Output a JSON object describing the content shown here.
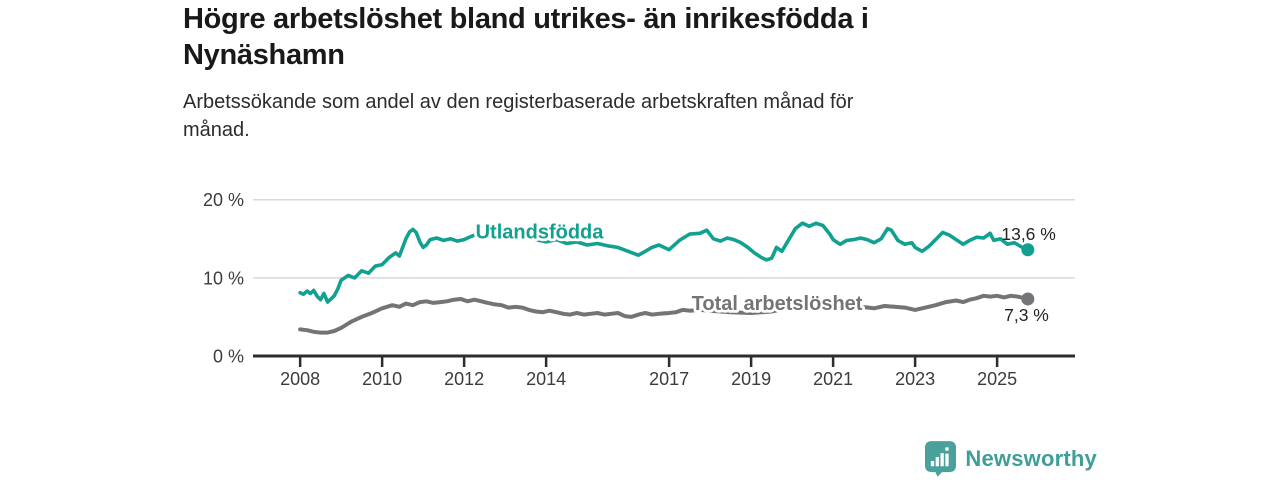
{
  "header": {
    "title_lines": [
      "Högre arbetslöshet bland utrikes- än inrikesfödda i",
      "Nynäshamn"
    ],
    "subtitle_lines": [
      "Arbetssökande som andel av den registerbaserade arbetskraften månad för",
      "månad."
    ]
  },
  "footer": {
    "brand": "Newsworthy",
    "logo_icon": "newsworthy-speech-bubble-bar-chart-icon"
  },
  "colors": {
    "accent_teal": "#12a190",
    "series_gray": "#747478",
    "gridline": "#d9d9d9",
    "axis": "#2d2d2d",
    "tick_label": "#3c3c3c",
    "value_label": "#242424",
    "logo_teal": "#4aa09a"
  },
  "chart_data": {
    "type": "line",
    "title": "Högre arbetslöshet bland utrikes- än inrikesfödda i Nynäshamn",
    "subtitle": "Arbetssökande som andel av den registerbaserade arbetskraften månad för månad.",
    "xlabel": "",
    "ylabel": "",
    "xlim": [
      2006.85,
      2026.9
    ],
    "ylim": [
      0,
      21.5
    ],
    "grid": "horizontal-only",
    "legend_position": "inline-on-line",
    "y_ticks": [
      {
        "value": 0,
        "label": "0 %"
      },
      {
        "value": 10,
        "label": "10 %"
      },
      {
        "value": 20,
        "label": "20 %"
      }
    ],
    "x_ticks": [
      {
        "value": 2008,
        "label": "2008"
      },
      {
        "value": 2010,
        "label": "2010"
      },
      {
        "value": 2012,
        "label": "2012"
      },
      {
        "value": 2014,
        "label": "2014"
      },
      {
        "value": 2017,
        "label": "2017"
      },
      {
        "value": 2019,
        "label": "2019"
      },
      {
        "value": 2021,
        "label": "2021"
      },
      {
        "value": 2023,
        "label": "2023"
      },
      {
        "value": 2025,
        "label": "2025"
      }
    ],
    "series": [
      {
        "name": "Utlandsfödda",
        "color": "#12a190",
        "end_label": "13,6 %",
        "end_value": 13.6,
        "label_at": [
          2012.28,
          15.05
        ],
        "points": [
          [
            2008.0,
            8.1
          ],
          [
            2008.08,
            7.9
          ],
          [
            2008.17,
            8.3
          ],
          [
            2008.25,
            8.0
          ],
          [
            2008.33,
            8.4
          ],
          [
            2008.42,
            7.6
          ],
          [
            2008.5,
            7.2
          ],
          [
            2008.58,
            8.0
          ],
          [
            2008.67,
            6.9
          ],
          [
            2008.75,
            7.3
          ],
          [
            2008.83,
            7.7
          ],
          [
            2008.92,
            8.6
          ],
          [
            2009.0,
            9.7
          ],
          [
            2009.17,
            10.3
          ],
          [
            2009.33,
            10.0
          ],
          [
            2009.5,
            10.9
          ],
          [
            2009.67,
            10.6
          ],
          [
            2009.83,
            11.5
          ],
          [
            2010.0,
            11.7
          ],
          [
            2010.17,
            12.6
          ],
          [
            2010.33,
            13.2
          ],
          [
            2010.42,
            12.8
          ],
          [
            2010.58,
            15.0
          ],
          [
            2010.67,
            15.9
          ],
          [
            2010.75,
            16.2
          ],
          [
            2010.83,
            15.8
          ],
          [
            2010.92,
            14.6
          ],
          [
            2011.0,
            13.9
          ],
          [
            2011.08,
            14.2
          ],
          [
            2011.17,
            14.9
          ],
          [
            2011.33,
            15.1
          ],
          [
            2011.5,
            14.8
          ],
          [
            2011.67,
            15.0
          ],
          [
            2011.83,
            14.7
          ],
          [
            2012.0,
            14.9
          ],
          [
            2012.17,
            15.3
          ],
          [
            2012.33,
            15.6
          ],
          [
            2012.5,
            15.2
          ],
          [
            2012.67,
            15.4
          ],
          [
            2012.83,
            15.1
          ],
          [
            2013.0,
            15.4
          ],
          [
            2013.25,
            15.6
          ],
          [
            2013.5,
            15.2
          ],
          [
            2013.75,
            14.9
          ],
          [
            2014.0,
            14.6
          ],
          [
            2014.25,
            14.9
          ],
          [
            2014.5,
            14.4
          ],
          [
            2014.75,
            14.6
          ],
          [
            2015.0,
            14.2
          ],
          [
            2015.25,
            14.4
          ],
          [
            2015.5,
            14.1
          ],
          [
            2015.75,
            13.9
          ],
          [
            2016.0,
            13.4
          ],
          [
            2016.25,
            12.9
          ],
          [
            2016.42,
            13.4
          ],
          [
            2016.58,
            13.9
          ],
          [
            2016.75,
            14.2
          ],
          [
            2017.0,
            13.6
          ],
          [
            2017.25,
            14.8
          ],
          [
            2017.5,
            15.6
          ],
          [
            2017.75,
            15.7
          ],
          [
            2017.92,
            16.1
          ],
          [
            2018.08,
            15.0
          ],
          [
            2018.25,
            14.7
          ],
          [
            2018.42,
            15.1
          ],
          [
            2018.58,
            14.9
          ],
          [
            2018.75,
            14.5
          ],
          [
            2018.92,
            13.9
          ],
          [
            2019.08,
            13.2
          ],
          [
            2019.25,
            12.6
          ],
          [
            2019.37,
            12.3
          ],
          [
            2019.5,
            12.5
          ],
          [
            2019.62,
            13.9
          ],
          [
            2019.75,
            13.4
          ],
          [
            2019.92,
            14.9
          ],
          [
            2020.08,
            16.3
          ],
          [
            2020.25,
            17.0
          ],
          [
            2020.42,
            16.6
          ],
          [
            2020.58,
            17.0
          ],
          [
            2020.75,
            16.7
          ],
          [
            2020.92,
            15.6
          ],
          [
            2021.0,
            14.9
          ],
          [
            2021.17,
            14.3
          ],
          [
            2021.33,
            14.8
          ],
          [
            2021.5,
            14.9
          ],
          [
            2021.67,
            15.1
          ],
          [
            2021.83,
            14.9
          ],
          [
            2022.0,
            14.5
          ],
          [
            2022.17,
            15.0
          ],
          [
            2022.33,
            16.3
          ],
          [
            2022.42,
            16.1
          ],
          [
            2022.58,
            14.8
          ],
          [
            2022.75,
            14.3
          ],
          [
            2022.92,
            14.5
          ],
          [
            2023.0,
            13.9
          ],
          [
            2023.17,
            13.4
          ],
          [
            2023.33,
            14.0
          ],
          [
            2023.5,
            14.9
          ],
          [
            2023.67,
            15.8
          ],
          [
            2023.83,
            15.5
          ],
          [
            2024.0,
            14.9
          ],
          [
            2024.17,
            14.3
          ],
          [
            2024.33,
            14.8
          ],
          [
            2024.5,
            15.2
          ],
          [
            2024.67,
            15.1
          ],
          [
            2024.83,
            15.7
          ],
          [
            2024.92,
            14.8
          ],
          [
            2025.08,
            15.0
          ],
          [
            2025.25,
            14.3
          ],
          [
            2025.42,
            14.5
          ],
          [
            2025.58,
            14.0
          ],
          [
            2025.75,
            13.6
          ]
        ]
      },
      {
        "name": "Total arbetslöshet",
        "color": "#747478",
        "end_label": "7,3 %",
        "end_value": 7.3,
        "label_at": [
          2017.55,
          5.9
        ],
        "points": [
          [
            2008.0,
            3.4
          ],
          [
            2008.17,
            3.3
          ],
          [
            2008.33,
            3.1
          ],
          [
            2008.5,
            3.0
          ],
          [
            2008.67,
            3.0
          ],
          [
            2008.83,
            3.2
          ],
          [
            2009.0,
            3.6
          ],
          [
            2009.25,
            4.4
          ],
          [
            2009.5,
            5.0
          ],
          [
            2009.75,
            5.5
          ],
          [
            2010.0,
            6.1
          ],
          [
            2010.25,
            6.5
          ],
          [
            2010.42,
            6.3
          ],
          [
            2010.58,
            6.7
          ],
          [
            2010.75,
            6.5
          ],
          [
            2010.92,
            6.9
          ],
          [
            2011.08,
            7.0
          ],
          [
            2011.25,
            6.8
          ],
          [
            2011.42,
            6.9
          ],
          [
            2011.58,
            7.0
          ],
          [
            2011.75,
            7.2
          ],
          [
            2011.92,
            7.3
          ],
          [
            2012.08,
            7.0
          ],
          [
            2012.25,
            7.2
          ],
          [
            2012.42,
            7.0
          ],
          [
            2012.58,
            6.8
          ],
          [
            2012.75,
            6.6
          ],
          [
            2012.92,
            6.5
          ],
          [
            2013.08,
            6.2
          ],
          [
            2013.25,
            6.3
          ],
          [
            2013.42,
            6.2
          ],
          [
            2013.58,
            5.9
          ],
          [
            2013.75,
            5.7
          ],
          [
            2013.92,
            5.6
          ],
          [
            2014.08,
            5.8
          ],
          [
            2014.25,
            5.6
          ],
          [
            2014.42,
            5.4
          ],
          [
            2014.58,
            5.3
          ],
          [
            2014.75,
            5.5
          ],
          [
            2014.92,
            5.3
          ],
          [
            2015.08,
            5.4
          ],
          [
            2015.25,
            5.5
          ],
          [
            2015.42,
            5.3
          ],
          [
            2015.58,
            5.4
          ],
          [
            2015.75,
            5.5
          ],
          [
            2015.92,
            5.1
          ],
          [
            2016.08,
            5.0
          ],
          [
            2016.25,
            5.3
          ],
          [
            2016.42,
            5.5
          ],
          [
            2016.58,
            5.3
          ],
          [
            2016.75,
            5.4
          ],
          [
            2017.0,
            5.5
          ],
          [
            2017.17,
            5.6
          ],
          [
            2017.33,
            5.9
          ],
          [
            2017.5,
            5.8
          ],
          [
            2017.75,
            5.9
          ],
          [
            2018.0,
            5.8
          ],
          [
            2018.5,
            5.6
          ],
          [
            2019.0,
            5.5
          ],
          [
            2019.5,
            5.7
          ],
          [
            2020.0,
            6.3
          ],
          [
            2020.5,
            7.0
          ],
          [
            2021.0,
            6.8
          ],
          [
            2021.5,
            6.4
          ],
          [
            2022.0,
            6.1
          ],
          [
            2022.25,
            6.4
          ],
          [
            2022.5,
            6.3
          ],
          [
            2022.75,
            6.2
          ],
          [
            2023.0,
            5.9
          ],
          [
            2023.25,
            6.2
          ],
          [
            2023.5,
            6.5
          ],
          [
            2023.75,
            6.9
          ],
          [
            2024.0,
            7.1
          ],
          [
            2024.17,
            6.9
          ],
          [
            2024.33,
            7.2
          ],
          [
            2024.5,
            7.4
          ],
          [
            2024.67,
            7.7
          ],
          [
            2024.83,
            7.6
          ],
          [
            2025.0,
            7.7
          ],
          [
            2025.17,
            7.5
          ],
          [
            2025.33,
            7.7
          ],
          [
            2025.5,
            7.6
          ],
          [
            2025.67,
            7.4
          ],
          [
            2025.75,
            7.3
          ]
        ]
      }
    ]
  }
}
